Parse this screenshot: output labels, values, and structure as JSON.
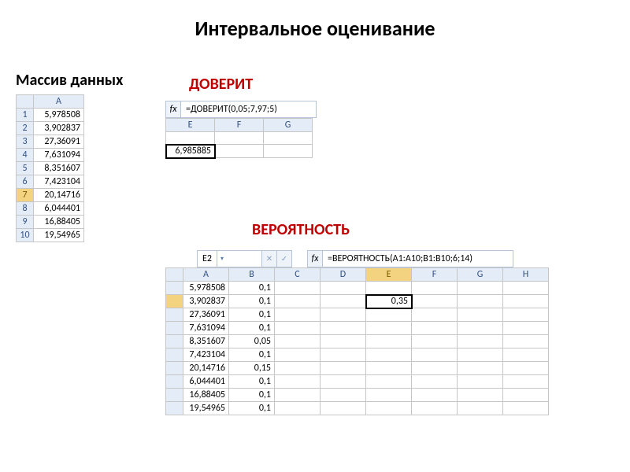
{
  "title": "Интервальное оценивание",
  "labels": {
    "massiv": "Массив данных",
    "doverit": "ДОВЕРИТ",
    "veroy": "ВЕРОЯТНОСТЬ"
  },
  "grid1": {
    "col": "A",
    "rows": [
      "5,978508",
      "3,902837",
      "27,36091",
      "7,631094",
      "8,351607",
      "7,423104",
      "20,14716",
      "6,044401",
      "16,88405",
      "19,54965"
    ],
    "selected_row_index": 6
  },
  "doverit": {
    "fx_label": "fx",
    "formula": "=ДОВЕРИТ(0,05;7,97;5)",
    "cols": [
      "E",
      "F",
      "G"
    ],
    "result": "6,985885"
  },
  "veroy": {
    "namebox": "E2",
    "dd_glyph": "▾",
    "cancel_glyph": "✕",
    "ok_glyph": "✓",
    "fx_label": "fx",
    "formula": "=ВЕРОЯТНОСТЬ(A1:A10;B1:B10;6;14)",
    "cols": [
      "A",
      "B",
      "C",
      "D",
      "E",
      "F",
      "G",
      "H"
    ],
    "rows": [
      {
        "a": "5,978508",
        "b": "0,1"
      },
      {
        "a": "3,902837",
        "b": "0,1",
        "e": "0,35"
      },
      {
        "a": "27,36091",
        "b": "0,1"
      },
      {
        "a": "7,631094",
        "b": "0,1"
      },
      {
        "a": "8,351607",
        "b": "0,05"
      },
      {
        "a": "7,423104",
        "b": "0,1"
      },
      {
        "a": "20,14716",
        "b": "0,15"
      },
      {
        "a": "6,044401",
        "b": "0,1"
      },
      {
        "a": "16,88405",
        "b": "0,1"
      },
      {
        "a": "19,54965",
        "b": "0,1"
      }
    ],
    "selected": {
      "row": 1,
      "col": "E"
    }
  }
}
